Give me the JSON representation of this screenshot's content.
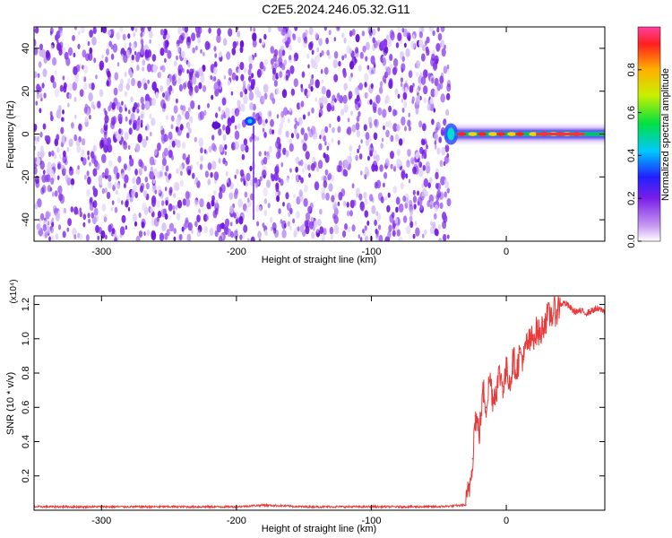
{
  "figure": {
    "title": "C2E5.2024.246.05.32.G11"
  },
  "colors": {
    "background": "#ffffff",
    "heatmap_dot": "#7a1fe8",
    "heatmap_light": "#cbb2f3",
    "snr_line": "#e83a3a",
    "axis": "#000000"
  },
  "chart_data": [
    {
      "type": "heatmap",
      "xlabel": "Height of straight line (km)",
      "ylabel": "Frequency (Hz)",
      "xlim": [
        -350,
        73
      ],
      "ylim": [
        -50,
        50
      ],
      "xticks": [
        -300,
        -200,
        -100,
        0
      ],
      "xtick_labels": [
        "-300",
        "-200",
        "-100",
        "0"
      ],
      "yticks": [
        -40,
        -20,
        0,
        20,
        40
      ],
      "ytick_labels": [
        "-40",
        "-20",
        "0",
        "20",
        "40"
      ],
      "grid": false,
      "noise_region_x": [
        -350,
        -45
      ],
      "signal_line": {
        "x_start": -45,
        "x_end": 73,
        "frequency_hz": 0
      },
      "colorbar": {
        "label": "Normalized spectral amplitude",
        "range": [
          0.0,
          1.0
        ],
        "ticks": [
          0.0,
          0.2,
          0.4,
          0.6,
          0.8
        ],
        "tick_labels": [
          "0.0",
          "0.2",
          "0.4",
          "0.6",
          "0.8"
        ],
        "colormap": "rainbow"
      }
    },
    {
      "type": "line",
      "xlabel": "Height of straight line (km)",
      "ylabel": "SNR (10 * v/v)",
      "scale_label": "(x10⁴)",
      "xlim": [
        -350,
        73
      ],
      "ylim": [
        0,
        1.25
      ],
      "xticks": [
        -300,
        -200,
        -100,
        0
      ],
      "xtick_labels": [
        "-300",
        "-200",
        "-100",
        "0"
      ],
      "yticks": [
        0.2,
        0.4,
        0.6,
        0.8,
        1.0,
        1.2
      ],
      "ytick_labels": [
        "0.2",
        "0.4",
        "0.6",
        "0.8",
        "1.0",
        "1.2"
      ],
      "grid": false,
      "series": [
        {
          "color": "#e83a3a",
          "x": [
            -350,
            -300,
            -250,
            -200,
            -180,
            -150,
            -100,
            -50,
            -30,
            -27,
            -25,
            -23,
            -20,
            -17,
            -15,
            -12,
            -10,
            -7,
            -5,
            -2,
            0,
            3,
            5,
            8,
            10,
            13,
            15,
            18,
            20,
            23,
            25,
            28,
            30,
            33,
            35,
            38,
            40,
            43,
            45,
            50,
            55,
            60,
            65,
            70,
            73
          ],
          "y": [
            0.02,
            0.02,
            0.02,
            0.02,
            0.03,
            0.02,
            0.02,
            0.02,
            0.03,
            0.15,
            0.3,
            0.55,
            0.45,
            0.7,
            0.6,
            0.78,
            0.65,
            0.72,
            0.8,
            0.72,
            0.82,
            0.75,
            0.88,
            0.82,
            0.92,
            0.88,
            0.97,
            0.98,
            1.02,
            1.05,
            1.02,
            1.1,
            1.12,
            1.14,
            1.15,
            1.17,
            1.2,
            1.21,
            1.2,
            1.16,
            1.16,
            1.15,
            1.17,
            1.17,
            1.16
          ]
        }
      ]
    }
  ]
}
